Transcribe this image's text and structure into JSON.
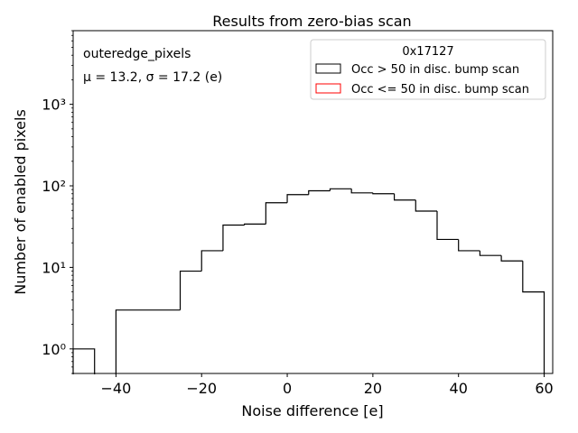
{
  "chart_data": {
    "type": "histogram",
    "title": "Results from zero-bias scan",
    "xlabel": "Noise difference [e]",
    "ylabel": "Number of enabled pixels",
    "xlim": [
      -50,
      62
    ],
    "ylim": [
      0.5,
      8000
    ],
    "yscale": "log",
    "xticks": [
      -40,
      -20,
      0,
      20,
      40,
      60
    ],
    "xtick_labels": [
      "−40",
      "−20",
      "0",
      "20",
      "40",
      "60"
    ],
    "yticks": [
      1,
      10,
      100,
      1000
    ],
    "ytick_labels": [
      "10⁰",
      "10¹",
      "10²",
      "10³"
    ],
    "annotations": {
      "line1": "outeredge_pixels",
      "line2": "μ = 13.2, σ = 17.2 (e)"
    },
    "legend": {
      "title": "0x17127",
      "placement": "top-right",
      "entries": [
        {
          "label": "Occ > 50 in disc. bump scan",
          "color": "#000000"
        },
        {
          "label": "Occ <= 50 in disc. bump scan",
          "color": "#ff0000"
        }
      ]
    },
    "series": [
      {
        "name": "Occ > 50 in disc. bump scan",
        "color": "#000000",
        "bin_edges": [
          -50,
          -45,
          -40,
          -35,
          -30,
          -25,
          -20,
          -15,
          -10,
          -5,
          0,
          5,
          10,
          15,
          20,
          25,
          30,
          35,
          40,
          45,
          50,
          55,
          60
        ],
        "counts": [
          1,
          0,
          3,
          3,
          3,
          9,
          16,
          33,
          34,
          62,
          78,
          87,
          92,
          82,
          80,
          67,
          49,
          22,
          16,
          14,
          12,
          5
        ]
      },
      {
        "name": "Occ <= 50 in disc. bump scan",
        "color": "#ff0000",
        "bin_edges": [],
        "counts": []
      }
    ]
  }
}
